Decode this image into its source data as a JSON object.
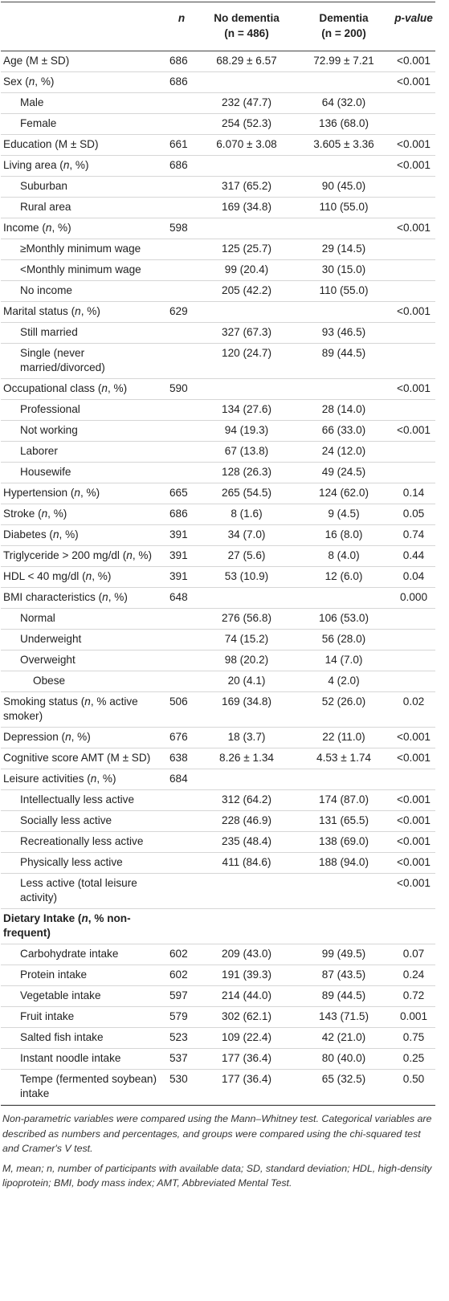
{
  "header": {
    "col_label": "",
    "col_n": "n",
    "col_no_dementia_1": "No dementia",
    "col_no_dementia_2": "(n = 486)",
    "col_dementia_1": "Dementia",
    "col_dementia_2": "(n = 200)",
    "col_p": "p-value"
  },
  "rows": [
    {
      "label": "Age (M ± SD)",
      "n": "686",
      "nd": "68.29 ± 6.57",
      "d": "72.99 ± 7.21",
      "p": "<0.001",
      "level": 0
    },
    {
      "label": "Sex (n, %)",
      "n": "686",
      "nd": "",
      "d": "",
      "p": "<0.001",
      "level": 0
    },
    {
      "label": "Male",
      "n": "",
      "nd": "232 (47.7)",
      "d": "64 (32.0)",
      "p": "",
      "level": 1
    },
    {
      "label": "Female",
      "n": "",
      "nd": "254 (52.3)",
      "d": "136 (68.0)",
      "p": "",
      "level": 1
    },
    {
      "label": "Education (M ± SD)",
      "n": "661",
      "nd": "6.070 ± 3.08",
      "d": "3.605 ± 3.36",
      "p": "<0.001",
      "level": 0
    },
    {
      "label": "Living area (n, %)",
      "n": "686",
      "nd": "",
      "d": "",
      "p": "<0.001",
      "level": 0
    },
    {
      "label": "Suburban",
      "n": "",
      "nd": "317 (65.2)",
      "d": "90 (45.0)",
      "p": "",
      "level": 1
    },
    {
      "label": "Rural area",
      "n": "",
      "nd": "169 (34.8)",
      "d": "110 (55.0)",
      "p": "",
      "level": 1
    },
    {
      "label": "Income (n, %)",
      "n": "598",
      "nd": "",
      "d": "",
      "p": "<0.001",
      "level": 0
    },
    {
      "label": "≥Monthly minimum wage",
      "n": "",
      "nd": "125 (25.7)",
      "d": "29 (14.5)",
      "p": "",
      "level": 1
    },
    {
      "label": "<Monthly minimum wage",
      "n": "",
      "nd": "99 (20.4)",
      "d": "30 (15.0)",
      "p": "",
      "level": 1
    },
    {
      "label": "No income",
      "n": "",
      "nd": "205 (42.2)",
      "d": "110 (55.0)",
      "p": "",
      "level": 1
    },
    {
      "label": "Marital status (n, %)",
      "n": "629",
      "nd": "",
      "d": "",
      "p": "<0.001",
      "level": 0
    },
    {
      "label": "Still married",
      "n": "",
      "nd": "327 (67.3)",
      "d": "93 (46.5)",
      "p": "",
      "level": 1
    },
    {
      "label": "Single (never married/divorced)",
      "n": "",
      "nd": "120 (24.7)",
      "d": "89 (44.5)",
      "p": "",
      "level": 1
    },
    {
      "label": "Occupational class (n, %)",
      "n": "590",
      "nd": "",
      "d": "",
      "p": "<0.001",
      "level": 0
    },
    {
      "label": "Professional",
      "n": "",
      "nd": "134 (27.6)",
      "d": "28 (14.0)",
      "p": "",
      "level": 1
    },
    {
      "label": "Not working",
      "n": "",
      "nd": "94 (19.3)",
      "d": "66 (33.0)",
      "p": "<0.001",
      "level": 1
    },
    {
      "label": "Laborer",
      "n": "",
      "nd": "67 (13.8)",
      "d": "24 (12.0)",
      "p": "",
      "level": 1
    },
    {
      "label": "Housewife",
      "n": "",
      "nd": "128 (26.3)",
      "d": "49 (24.5)",
      "p": "",
      "level": 1
    },
    {
      "label": "Hypertension (n, %)",
      "n": "665",
      "nd": "265 (54.5)",
      "d": "124 (62.0)",
      "p": "0.14",
      "level": 0
    },
    {
      "label": "Stroke (n, %)",
      "n": "686",
      "nd": "8 (1.6)",
      "d": "9 (4.5)",
      "p": "0.05",
      "level": 0
    },
    {
      "label": "Diabetes (n, %)",
      "n": "391",
      "nd": "34 (7.0)",
      "d": "16 (8.0)",
      "p": "0.74",
      "level": 0
    },
    {
      "label": "Triglyceride > 200 mg/dl (n, %)",
      "n": "391",
      "nd": "27 (5.6)",
      "d": "8 (4.0)",
      "p": "0.44",
      "level": 0
    },
    {
      "label": "HDL < 40 mg/dl (n, %)",
      "n": "391",
      "nd": "53 (10.9)",
      "d": "12 (6.0)",
      "p": "0.04",
      "level": 0
    },
    {
      "label": "BMI characteristics (n, %)",
      "n": "648",
      "nd": "",
      "d": "",
      "p": "0.000",
      "level": 0
    },
    {
      "label": "Normal",
      "n": "",
      "nd": "276 (56.8)",
      "d": "106 (53.0)",
      "p": "",
      "level": 1
    },
    {
      "label": "Underweight",
      "n": "",
      "nd": "74 (15.2)",
      "d": "56 (28.0)",
      "p": "",
      "level": 1
    },
    {
      "label": "Overweight",
      "n": "",
      "nd": "98 (20.2)",
      "d": "14 (7.0)",
      "p": "",
      "level": 1
    },
    {
      "label": "Obese",
      "n": "",
      "nd": "20 (4.1)",
      "d": "4 (2.0)",
      "p": "",
      "level": 2
    },
    {
      "label": "Smoking status (n, % active smoker)",
      "n": "506",
      "nd": "169 (34.8)",
      "d": "52 (26.0)",
      "p": "0.02",
      "level": 0
    },
    {
      "label": "Depression (n, %)",
      "n": "676",
      "nd": "18 (3.7)",
      "d": "22 (11.0)",
      "p": "<0.001",
      "level": 0
    },
    {
      "label": "Cognitive score AMT (M ± SD)",
      "n": "638",
      "nd": "8.26 ± 1.34",
      "d": "4.53 ± 1.74",
      "p": "<0.001",
      "level": 0
    },
    {
      "label": "Leisure activities (n, %)",
      "n": "684",
      "nd": "",
      "d": "",
      "p": "",
      "level": 0
    },
    {
      "label": "Intellectually less active",
      "n": "",
      "nd": "312 (64.2)",
      "d": "174 (87.0)",
      "p": "<0.001",
      "level": 1
    },
    {
      "label": "Socially less active",
      "n": "",
      "nd": "228 (46.9)",
      "d": "131 (65.5)",
      "p": "<0.001",
      "level": 1
    },
    {
      "label": "Recreationally less active",
      "n": "",
      "nd": "235 (48.4)",
      "d": "138 (69.0)",
      "p": "<0.001",
      "level": 1
    },
    {
      "label": "Physically less active",
      "n": "",
      "nd": "411 (84.6)",
      "d": "188 (94.0)",
      "p": "<0.001",
      "level": 1
    },
    {
      "label": "Less active (total leisure activity)",
      "n": "",
      "nd": "",
      "d": "",
      "p": "<0.001",
      "level": 1
    },
    {
      "label": "Dietary Intake (n, % non-frequent)",
      "n": "",
      "nd": "",
      "d": "",
      "p": "",
      "level": 0,
      "bold": true
    },
    {
      "label": "Carbohydrate intake",
      "n": "602",
      "nd": "209 (43.0)",
      "d": "99 (49.5)",
      "p": "0.07",
      "level": 1
    },
    {
      "label": "Protein intake",
      "n": "602",
      "nd": "191 (39.3)",
      "d": "87 (43.5)",
      "p": "0.24",
      "level": 1
    },
    {
      "label": "Vegetable intake",
      "n": "597",
      "nd": "214 (44.0)",
      "d": "89 (44.5)",
      "p": "0.72",
      "level": 1
    },
    {
      "label": "Fruit intake",
      "n": "579",
      "nd": "302 (62.1)",
      "d": "143 (71.5)",
      "p": "0.001",
      "level": 1
    },
    {
      "label": "Salted fish intake",
      "n": "523",
      "nd": "109 (22.4)",
      "d": "42 (21.0)",
      "p": "0.75",
      "level": 1
    },
    {
      "label": "Instant noodle intake",
      "n": "537",
      "nd": "177 (36.4)",
      "d": "80 (40.0)",
      "p": "0.25",
      "level": 1
    },
    {
      "label": "Tempe (fermented soybean) intake",
      "n": "530",
      "nd": "177 (36.4)",
      "d": "65 (32.5)",
      "p": "0.50",
      "level": 1
    }
  ],
  "notes": [
    "Non-parametric variables were compared using the Mann–Whitney test. Categorical variables are described as numbers and percentages, and groups were compared using the chi-squared test and Cramer's V test.",
    "M, mean; n, number of participants with available data; SD, standard deviation; HDL, high-density lipoprotein; BMI, body mass index; AMT, Abbreviated Mental Test."
  ]
}
